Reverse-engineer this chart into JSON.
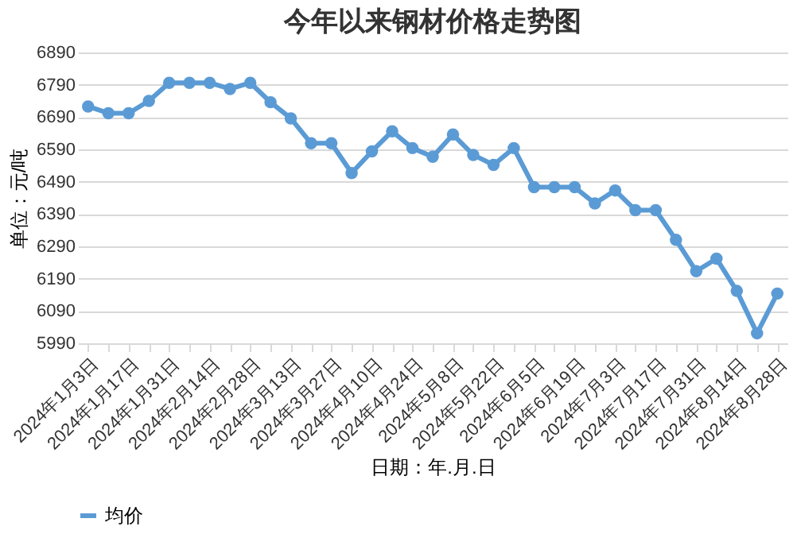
{
  "chart_data": {
    "type": "line",
    "title": "今年以来钢材价格走势图",
    "xlabel": "日期：年.月.日",
    "ylabel": "单位：元/吨",
    "categories": [
      "2024年1月3日",
      null,
      "2024年1月17日",
      null,
      "2024年1月31日",
      null,
      "2024年2月14日",
      null,
      "2024年2月28日",
      null,
      "2024年3月13日",
      null,
      "2024年3月27日",
      null,
      "2024年4月10日",
      null,
      "2024年4月24日",
      null,
      "2024年5月8日",
      null,
      "2024年5月22日",
      null,
      "2024年6月5日",
      null,
      "2024年6月19日",
      null,
      "2024年7月3日",
      null,
      "2024年7月17日",
      null,
      "2024年7月31日",
      null,
      "2024年8月14日",
      null,
      "2024年8月28日"
    ],
    "series": [
      {
        "name": "均价",
        "color": "#5b9bd5",
        "values": [
          6723,
          6702,
          6702,
          6740,
          6796,
          6796,
          6796,
          6777,
          6796,
          6736,
          6686,
          6609,
          6609,
          6517,
          6584,
          6646,
          6594,
          6567,
          6636,
          6573,
          6542,
          6594,
          6473,
          6473,
          6473,
          6423,
          6463,
          6402,
          6402,
          6310,
          6213,
          6252,
          6152,
          6021,
          6144
        ]
      }
    ],
    "ylim": [
      5990,
      6890
    ],
    "yticks": [
      5990,
      6090,
      6190,
      6290,
      6390,
      6490,
      6590,
      6690,
      6790,
      6890
    ],
    "grid": "y",
    "legend": "bottom",
    "marker": "circle",
    "line_style": "solid"
  }
}
